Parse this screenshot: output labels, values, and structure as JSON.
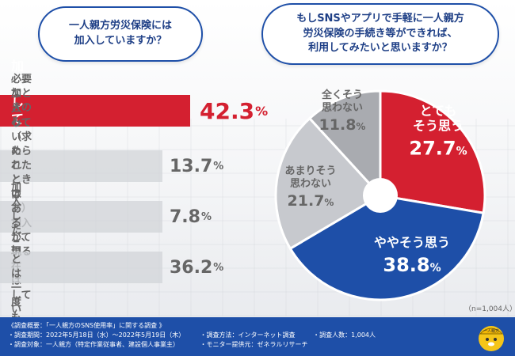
{
  "question_left": [
    "一人親方労災保険には",
    "加入していますか？"
  ],
  "question_right": [
    "もしSNSやアプリで手軽に一人親方",
    "労災保険の手続き等ができれば、",
    "利用してみたいと思いますか？"
  ],
  "chart_data": [
    {
      "type": "bar",
      "orientation": "horizontal",
      "title": "一人親方労災保険には加入していますか？",
      "categories": [
        [
          "加入している"
        ],
        [
          "必要なときのみ（求められた",
          "ときのみ）加入している"
        ],
        [
          "加入していたことはあるが、",
          "現在はしていない"
        ],
        [
          "加入したことは",
          "一度もない"
        ]
      ],
      "values": [
        42.3,
        13.7,
        7.8,
        36.2
      ],
      "unit": "%",
      "colors": [
        "#d42030",
        "#cfd1d6",
        "#cfd1d6",
        "#cfd1d6"
      ]
    },
    {
      "type": "pie",
      "style": "donut",
      "title": "もしSNSやアプリで手軽に一人親方労災保険の手続き等ができれば、利用してみたいと思いますか？",
      "slices": [
        {
          "label": [
            "とても",
            "そう思う"
          ],
          "value": 27.7,
          "color": "#d42030"
        },
        {
          "label": [
            "ややそう思う"
          ],
          "value": 38.8,
          "color": "#1e4fa8"
        },
        {
          "label": [
            "あまりそう",
            "思わない"
          ],
          "value": 21.7,
          "color": "#c7c9ce"
        },
        {
          "label": [
            "全くそう",
            "思わない"
          ],
          "value": 11.8,
          "color": "#a9abb0"
        }
      ],
      "unit": "%",
      "note": "（n=1,004人）"
    }
  ],
  "footer": {
    "title": "《調査概要：「一人親方のSNS使用率」に関する調査 》",
    "period": "・調査期間：2022年5月18日（水）〜2022年5月19日（木）",
    "method": "・調査方法：インターネット調査",
    "count": "・調査人数：1,004人",
    "target": "・調査対象：一人親方（特定作業従事者、建設個人事業主）",
    "provider": "・モニター提供元：ゼネラルリサーチ"
  },
  "mascot_text": "一人親方"
}
